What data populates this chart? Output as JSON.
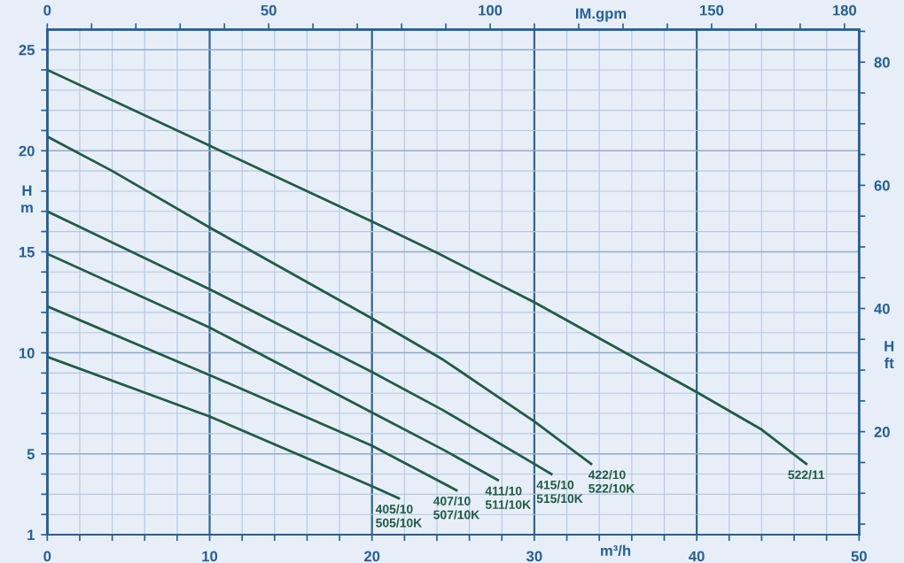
{
  "chart_data": {
    "type": "line",
    "xlabel": "m³/h",
    "ylabel": "H\nm",
    "y2label": "H\nft",
    "x2label": "IM.gpm",
    "xlim": [
      0,
      50
    ],
    "xticks": [
      0,
      {
        "value": 2,
        "label": null
      },
      {
        "value": 4,
        "label": null
      },
      {
        "value": 6,
        "label": null
      },
      {
        "value": 8,
        "label": null
      },
      10,
      {
        "value": 12,
        "label": null
      },
      {
        "value": 14,
        "label": null
      },
      {
        "value": 16,
        "label": null
      },
      {
        "value": 18,
        "label": null
      },
      20,
      {
        "value": 22,
        "label": null
      },
      {
        "value": 24,
        "label": null
      },
      {
        "value": 26,
        "label": null
      },
      {
        "value": 28,
        "label": null
      },
      30,
      {
        "value": 32,
        "label": null
      },
      {
        "value": 34,
        "label": null
      },
      {
        "value": 36,
        "label": null
      },
      {
        "value": 38,
        "label": null
      },
      40,
      {
        "value": 42,
        "label": null
      },
      {
        "value": 44,
        "label": null
      },
      {
        "value": 46,
        "label": null
      },
      {
        "value": 48,
        "label": null
      },
      50
    ],
    "ylim": [
      1,
      26
    ],
    "yticks": [
      1,
      {
        "value": 2,
        "label": null
      },
      {
        "value": 3,
        "label": null
      },
      {
        "value": 4,
        "label": null
      },
      5,
      {
        "value": 6,
        "label": null
      },
      {
        "value": 7,
        "label": null
      },
      {
        "value": 8,
        "label": null
      },
      {
        "value": 9,
        "label": null
      },
      10,
      {
        "value": 11,
        "label": null
      },
      {
        "value": 12,
        "label": null
      },
      {
        "value": 13,
        "label": null
      },
      {
        "value": 14,
        "label": null
      },
      15,
      {
        "value": 16,
        "label": null
      },
      {
        "value": 17,
        "label": null
      },
      {
        "value": 18,
        "label": null
      },
      {
        "value": 19,
        "label": null
      },
      20,
      {
        "value": 21,
        "label": null
      },
      {
        "value": 22,
        "label": null
      },
      {
        "value": 23,
        "label": null
      },
      {
        "value": 24,
        "label": null
      },
      25
    ],
    "x2lim": [
      0,
      183.3
    ],
    "x2ticks": [
      0,
      {
        "value": 10,
        "label": null
      },
      {
        "value": 20,
        "label": null
      },
      {
        "value": 30,
        "label": null
      },
      {
        "value": 40,
        "label": null
      },
      50,
      {
        "value": 60,
        "label": null
      },
      {
        "value": 70,
        "label": null
      },
      {
        "value": 80,
        "label": null
      },
      {
        "value": 90,
        "label": null
      },
      100,
      {
        "value": 110,
        "label": null
      },
      {
        "value": 120,
        "label": null
      },
      {
        "value": 130,
        "label": null
      },
      {
        "value": 140,
        "label": null
      },
      150,
      {
        "value": 160,
        "label": null
      },
      {
        "value": 170,
        "label": null
      },
      180
    ],
    "y2lim": [
      3.28,
      85.3
    ],
    "y2ticks": [
      {
        "value": 5,
        "label": null
      },
      {
        "value": 10,
        "label": null
      },
      {
        "value": 15,
        "label": null
      },
      20,
      {
        "value": 25,
        "label": null
      },
      {
        "value": 30,
        "label": null
      },
      {
        "value": 35,
        "label": null
      },
      40,
      {
        "value": 45,
        "label": null
      },
      {
        "value": 50,
        "label": null
      },
      {
        "value": 55,
        "label": null
      },
      60,
      {
        "value": 65,
        "label": null
      },
      {
        "value": 70,
        "label": null
      },
      {
        "value": 75,
        "label": null
      },
      80,
      {
        "value": 85,
        "label": null
      }
    ],
    "grid": true,
    "marker": "none",
    "line_style": "solid",
    "series": [
      {
        "name": "405/10\n505/10K",
        "color": "#1f5c45",
        "x": [
          0,
          10,
          20,
          21.65
        ],
        "values": [
          9.8,
          6.85,
          3.4,
          2.8
        ]
      },
      {
        "name": "407/10\n507/10K",
        "color": "#1f5c45",
        "x": [
          0,
          10,
          20,
          25.2
        ],
        "values": [
          12.3,
          8.9,
          5.4,
          3.2
        ]
      },
      {
        "name": "411/10\n511/10K",
        "color": "#1f5c45",
        "x": [
          0,
          10,
          20,
          24.4,
          27.75
        ],
        "values": [
          14.9,
          11.25,
          7.05,
          5.2,
          3.7
        ]
      },
      {
        "name": "415/10\n515/10K",
        "color": "#1f5c45",
        "x": [
          0,
          10,
          20,
          24.4,
          30,
          31.05
        ],
        "values": [
          17.0,
          13.15,
          9.05,
          7.15,
          4.5,
          4.0
        ]
      },
      {
        "name": "422/10\n522/10K",
        "color": "#1f5c45",
        "x": [
          0,
          4,
          10,
          20,
          24.4,
          30,
          33.5
        ],
        "values": [
          20.7,
          19.0,
          16.2,
          11.7,
          9.65,
          6.6,
          4.5
        ]
      },
      {
        "name": "522/11",
        "color": "#1f5c45",
        "x": [
          0,
          10,
          20,
          24,
          30,
          40,
          44,
          46.75
        ],
        "values": [
          24.0,
          20.25,
          16.5,
          14.95,
          12.5,
          8.05,
          6.2,
          4.5
        ]
      }
    ]
  }
}
